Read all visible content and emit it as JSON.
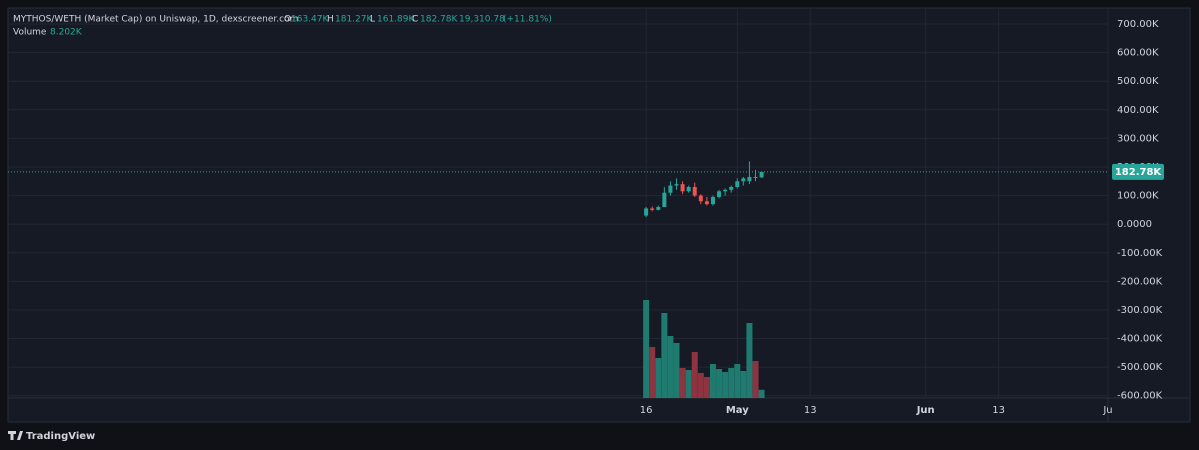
{
  "chart_data": {
    "type": "candlestick",
    "title": "MYTHOS/WETH (Market Cap) on Uniswap, 1D, dexscreener.com",
    "x": [
      "04-16",
      "04-17",
      "04-18",
      "04-19",
      "04-20",
      "04-21",
      "04-22",
      "04-23",
      "04-24",
      "04-25",
      "04-26",
      "04-27",
      "04-28",
      "04-29",
      "04-30",
      "05-01",
      "05-02",
      "05-03",
      "05-04",
      "05-05"
    ],
    "open": [
      30000,
      55000,
      50000,
      60000,
      110000,
      135000,
      140000,
      115000,
      130000,
      100000,
      80000,
      70000,
      95000,
      115000,
      120000,
      130000,
      150000,
      150000,
      165000,
      163470
    ],
    "high": [
      60000,
      62000,
      65000,
      130000,
      150000,
      160000,
      150000,
      135000,
      145000,
      105000,
      95000,
      100000,
      120000,
      125000,
      135000,
      160000,
      165000,
      220000,
      190000,
      181270
    ],
    "low": [
      25000,
      45000,
      48000,
      60000,
      100000,
      120000,
      105000,
      110000,
      95000,
      70000,
      65000,
      65000,
      90000,
      100000,
      110000,
      125000,
      135000,
      140000,
      150000,
      161890
    ],
    "close": [
      55000,
      50000,
      60000,
      110000,
      135000,
      140000,
      115000,
      130000,
      100000,
      80000,
      70000,
      95000,
      115000,
      120000,
      130000,
      150000,
      160000,
      165000,
      163470,
      182780
    ],
    "volume": [
      98000,
      51000,
      40000,
      85000,
      62000,
      55000,
      30000,
      28000,
      46000,
      25000,
      21000,
      34000,
      29000,
      26000,
      30000,
      34000,
      27000,
      75000,
      37000,
      8202
    ],
    "up_color": "#26a69a",
    "down_color": "#ef5350",
    "volume_up_color": "#1f7a70",
    "volume_down_color": "#8e3440",
    "ylim": [
      -608000,
      756000
    ],
    "yticks": [
      {
        "value": -600000,
        "label": "-600.00K"
      },
      {
        "value": -500000,
        "label": "-500.00K"
      },
      {
        "value": -400000,
        "label": "-400.00K"
      },
      {
        "value": -300000,
        "label": "-300.00K"
      },
      {
        "value": -200000,
        "label": "-200.00K"
      },
      {
        "value": -100000,
        "label": "-100.00K"
      },
      {
        "value": 0,
        "label": "0.0000"
      },
      {
        "value": 100000,
        "label": "100.00K"
      },
      {
        "value": 200000,
        "label": "200.00K"
      },
      {
        "value": 300000,
        "label": "300.00K"
      },
      {
        "value": 400000,
        "label": "400.00K"
      },
      {
        "value": 500000,
        "label": "500.00K"
      },
      {
        "value": 600000,
        "label": "600.00K"
      },
      {
        "value": 700000,
        "label": "700.00K"
      }
    ],
    "xlim": [
      "01-01",
      "07-01"
    ],
    "xticks": [
      {
        "value": "04-16",
        "label": "16"
      },
      {
        "value": "05-01",
        "label": "May"
      },
      {
        "value": "05-13",
        "label": "13"
      },
      {
        "value": "06-01",
        "label": "Jun"
      },
      {
        "value": "06-13",
        "label": "13"
      },
      {
        "value": "07-01",
        "label": "Ju"
      }
    ],
    "vlim": [
      0,
      100000
    ],
    "grid": true,
    "legend": {
      "o": "O",
      "open": "163.47K",
      "h": "H",
      "high": "181.27K",
      "l": "L",
      "low": "161.89K",
      "c": "C",
      "close": "182.78K",
      "change": "19,310.78",
      "change_pct": "(+11.81%)",
      "volume_name": "Volume",
      "volume": "8.202K"
    },
    "brand": "TradingView"
  }
}
